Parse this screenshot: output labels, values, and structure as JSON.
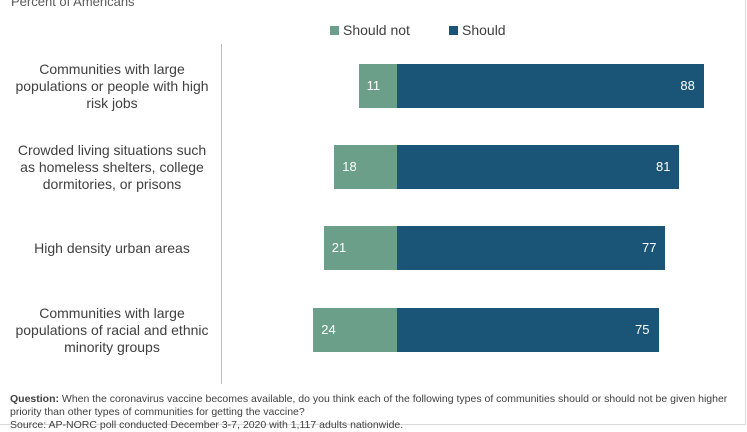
{
  "subtitle": "Percent of Americans",
  "colors": {
    "should_not": "#6c9f8a",
    "should": "#1a5577"
  },
  "chart_data": {
    "type": "bar",
    "orientation": "horizontal-diverging",
    "categories": [
      "Communities with large populations or people with high risk jobs",
      "Crowded living situations such as homeless shelters, college dormitories, or prisons",
      "High density urban areas",
      "Communities with large populations of racial and ethnic minority groups"
    ],
    "series": [
      {
        "name": "Should not",
        "values": [
          11,
          18,
          21,
          24
        ]
      },
      {
        "name": "Should",
        "values": [
          88,
          81,
          77,
          75
        ]
      }
    ],
    "legend_position": "top"
  },
  "category_lines": [
    [
      "Communities with large",
      "populations or people with high",
      "risk jobs"
    ],
    [
      "Crowded living situations such",
      "as homeless shelters, college",
      "dormitories, or prisons"
    ],
    [
      "High density urban areas"
    ],
    [
      "Communities with large",
      "populations of racial and ethnic",
      "minority groups"
    ]
  ],
  "footnote": {
    "question_label": "Question:",
    "question_text": "When the coronavirus vaccine becomes available, do you think each of the following types of communities should or should not be given higher priority than other types of communities for getting the vaccine?",
    "source_text": "Source: AP-NORC poll conducted December 3-7, 2020 with 1,117 adults nationwide."
  }
}
